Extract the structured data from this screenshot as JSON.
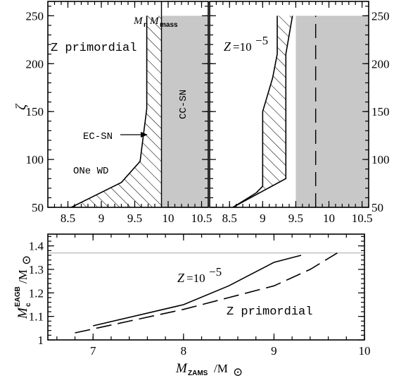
{
  "chart_data": [
    {
      "type": "area",
      "panel": "Z primordial",
      "annotation": "Z primordial",
      "top_label": {
        "m1": "M",
        "m1_sub": "n",
        "m2": "M",
        "m2_sub": "mass"
      },
      "ylabel": "ζ",
      "xlim": [
        8.2,
        10.6
      ],
      "ylim": [
        50,
        265
      ],
      "x_ticks": [
        "8.5",
        "9",
        "9.5",
        "10",
        "10.5"
      ],
      "y_ticks": [
        "50",
        "100",
        "150",
        "200",
        "250"
      ],
      "regions": {
        "one_wd": "ONe WD",
        "ec_sn": "EC-SN",
        "cc_sn": "CC-SN"
      },
      "ec_sn_left_boundary": {
        "x": [
          8.55,
          9.3,
          9.58,
          9.68,
          9.68
        ],
        "y": [
          50,
          76,
          98,
          153,
          250
        ]
      },
      "ec_sn_right_boundary": 9.9,
      "cc_sn_range": [
        9.9,
        10.6
      ]
    },
    {
      "type": "area",
      "panel": "Z=10^-5",
      "annotation": {
        "text": "Z",
        "eq": "=10",
        "exp": "−5"
      },
      "xlim": [
        8.2,
        10.6
      ],
      "ylim": [
        50,
        265
      ],
      "x_ticks": [
        "8.5",
        "9",
        "9.5",
        "10",
        "10.5"
      ],
      "y_ticks": [
        "50",
        "100",
        "150",
        "200",
        "250"
      ],
      "ec_sn_left_boundary": {
        "x": [
          8.55,
          8.9,
          9.0,
          9.0,
          9.15,
          9.22,
          9.22
        ],
        "y": [
          50,
          65,
          72,
          150,
          185,
          210,
          250
        ]
      },
      "ec_sn_right_boundary": {
        "x": [
          8.55,
          9.35,
          9.35,
          9.45
        ],
        "y": [
          50,
          80,
          210,
          250
        ]
      },
      "dashed_boundary_x": 9.8,
      "cc_sn_range": [
        9.5,
        10.6
      ]
    },
    {
      "type": "line",
      "xlabel": {
        "m": "M",
        "sub": "ZAMS",
        "rest": "/M",
        "sun": "⊙"
      },
      "ylabel": {
        "m": "M",
        "sub": "c",
        "sup": "EAGB",
        "rest": "/M",
        "sun": "⊙"
      },
      "xlim": [
        6.5,
        10
      ],
      "ylim": [
        1.0,
        1.45
      ],
      "x_ticks": [
        "7",
        "8",
        "9",
        "10"
      ],
      "y_ticks": [
        "1",
        "1.1",
        "1.2",
        "1.3",
        "1.4"
      ],
      "reference_line": 1.37,
      "series": [
        {
          "name": "Z=10^-5",
          "label": {
            "text": "Z",
            "eq": "=10",
            "exp": "−5"
          },
          "style": "solid",
          "x": [
            7.0,
            8.0,
            8.5,
            9.0,
            9.3
          ],
          "y": [
            1.06,
            1.15,
            1.23,
            1.33,
            1.36
          ]
        },
        {
          "name": "Z primordial",
          "label": "Z primordial",
          "style": "dashed",
          "x": [
            6.8,
            8.0,
            8.5,
            9.0,
            9.4,
            9.7
          ],
          "y": [
            1.03,
            1.13,
            1.18,
            1.23,
            1.3,
            1.37
          ]
        }
      ]
    }
  ]
}
